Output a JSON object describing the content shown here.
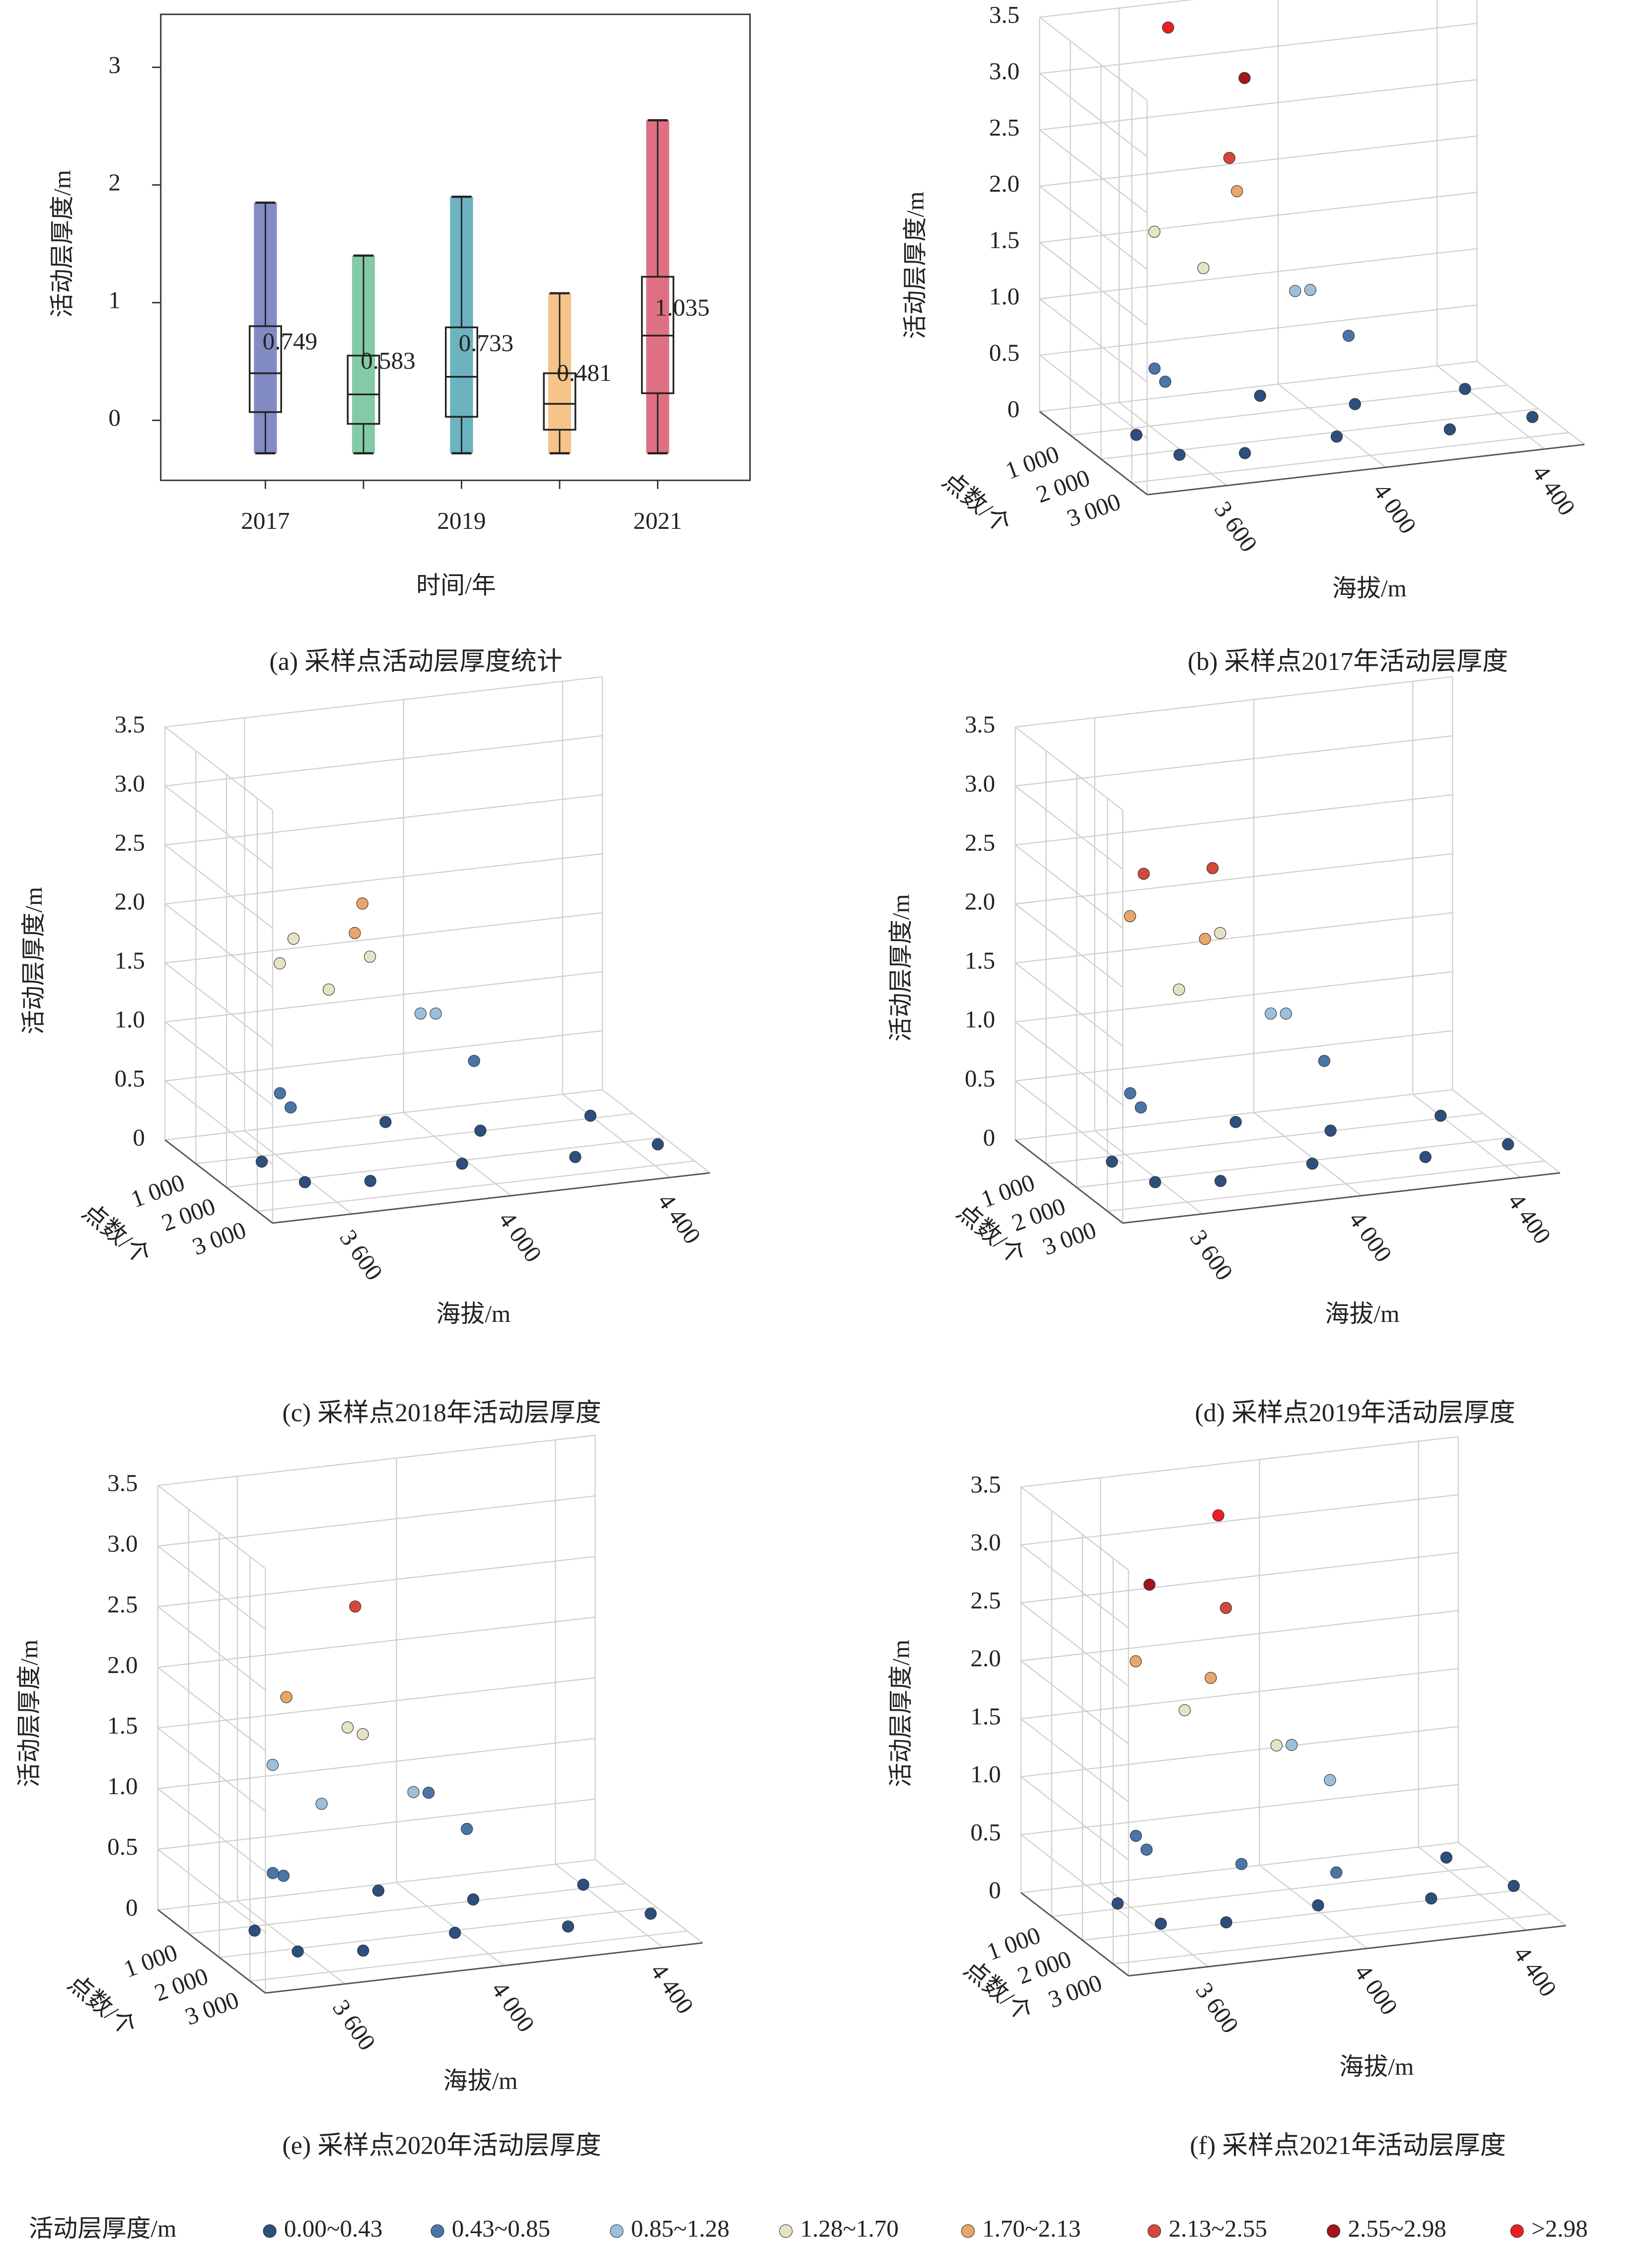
{
  "chart_data": [
    {
      "type": "box",
      "x_label": "时间/年",
      "y_label": "活动层厚度/m",
      "caption": "(a) 采样点活动层厚度统计",
      "categories": [
        "2017",
        null,
        "2019",
        null,
        "2021"
      ],
      "colors": [
        "#5a64b0",
        "#5cb88a",
        "#3a9aa8",
        "#f0b060",
        "#d4405a"
      ],
      "boxes": [
        {
          "low": -0.28,
          "q1": 0.07,
          "median": 0.4,
          "q3": 0.8,
          "high": 1.85
        },
        {
          "low": -0.28,
          "q1": -0.03,
          "median": 0.22,
          "q3": 0.55,
          "high": 1.4
        },
        {
          "low": -0.28,
          "q1": 0.03,
          "median": 0.37,
          "q3": 0.79,
          "high": 1.9
        },
        {
          "low": -0.28,
          "q1": -0.08,
          "median": 0.14,
          "q3": 0.4,
          "high": 1.08
        },
        {
          "low": -0.28,
          "q1": 0.23,
          "median": 0.72,
          "q3": 1.22,
          "high": 2.55
        }
      ],
      "means": [
        0.749,
        0.583,
        0.733,
        0.481,
        1.035
      ],
      "ylim": [
        -0.51,
        3.45
      ],
      "yticks": [
        0,
        1,
        2,
        3
      ]
    },
    {
      "type": "scatter3d",
      "caption": "(b) 采样点2017年活动层厚度",
      "x_label": "海拔/m",
      "y_label": "点数/个",
      "z_label": "活动层厚度/m",
      "xlim": [
        3400,
        4500
      ],
      "ylim": [
        0,
        3500
      ],
      "zlim": [
        0,
        3.5
      ],
      "xticks": [
        {
          "value": 3600,
          "label": "3 600"
        },
        {
          "value": 4000,
          "label": "4 000"
        },
        {
          "value": 4400,
          "label": "4 400"
        }
      ],
      "yticks": [
        {
          "value": 1000,
          "label": "1 000"
        },
        {
          "value": 2000,
          "label": "2 000"
        },
        {
          "value": 3000,
          "label": "3 000"
        }
      ],
      "zticks": [
        0,
        0.5,
        {
          "value": 1,
          "label": "1.0"
        },
        1.5,
        {
          "value": 2,
          "label": "2.0"
        },
        2.5,
        {
          "value": 3,
          "label": "3.0"
        },
        3.5
      ],
      "x": [
        3450,
        3520,
        3600,
        3700,
        3800,
        3900,
        4000,
        4100,
        4200,
        4300,
        3650,
        3750,
        3850,
        3950,
        4050,
        3550,
        3700,
        3900,
        4400,
        3800
      ],
      "y": [
        2500,
        3000,
        1500,
        2800,
        2000,
        3200,
        2500,
        1000,
        3000,
        2200,
        500,
        800,
        600,
        1200,
        400,
        1800,
        300,
        200,
        3100,
        1000
      ],
      "z": [
        0.3,
        0.2,
        0.5,
        0.1,
        0.4,
        0.25,
        0.35,
        0.6,
        0.15,
        0.3,
        1.6,
        1.3,
        1.9,
        1.1,
        0.9,
        0.7,
        3.35,
        2.8,
        0.2,
        2.3
      ]
    },
    {
      "type": "scatter3d",
      "caption": "(c) 采样点2018年活动层厚度",
      "x_label": "海拔/m",
      "y_label": "点数/个",
      "z_label": "活动层厚度/m",
      "xlim": [
        3400,
        4500
      ],
      "ylim": [
        0,
        3500
      ],
      "zlim": [
        0,
        3.5
      ],
      "xticks": [
        {
          "value": 3600,
          "label": "3 600"
        },
        {
          "value": 4000,
          "label": "4 000"
        },
        {
          "value": 4400,
          "label": "4 400"
        }
      ],
      "yticks": [
        {
          "value": 1000,
          "label": "1 000"
        },
        {
          "value": 2000,
          "label": "2 000"
        },
        {
          "value": 3000,
          "label": "3 000"
        }
      ],
      "zticks": [
        0,
        0.5,
        {
          "value": 1,
          "label": "1.0"
        },
        1.5,
        {
          "value": 2,
          "label": "2.0"
        },
        2.5,
        {
          "value": 3,
          "label": "3.0"
        },
        3.5
      ],
      "x": [
        3450,
        3520,
        3600,
        3700,
        3800,
        3900,
        4000,
        4100,
        4200,
        4300,
        3650,
        3750,
        3850,
        3950,
        4050,
        3550,
        3700,
        3900,
        4400,
        3800
      ],
      "y": [
        2500,
        3000,
        1500,
        2800,
        2000,
        3200,
        2500,
        1000,
        3000,
        2200,
        500,
        800,
        600,
        1200,
        400,
        1800,
        300,
        200,
        3100,
        1000
      ],
      "z": [
        0.3,
        0.2,
        0.5,
        0.1,
        0.4,
        0.25,
        0.35,
        0.6,
        0.15,
        0.3,
        1.5,
        1.3,
        1.95,
        1.1,
        0.9,
        0.7,
        1.65,
        1.4,
        0.2,
        1.8
      ]
    },
    {
      "type": "scatter3d",
      "caption": "(d) 采样点2019年活动层厚度",
      "x_label": "海拔/m",
      "y_label": "点数/个",
      "z_label": "活动层厚度/m",
      "xlim": [
        3400,
        4500
      ],
      "ylim": [
        0,
        3500
      ],
      "zlim": [
        0,
        3.5
      ],
      "xticks": [
        {
          "value": 3600,
          "label": "3 600"
        },
        {
          "value": 4000,
          "label": "4 000"
        },
        {
          "value": 4400,
          "label": "4 400"
        }
      ],
      "yticks": [
        {
          "value": 1000,
          "label": "1 000"
        },
        {
          "value": 2000,
          "label": "2 000"
        },
        {
          "value": 3000,
          "label": "3 000"
        }
      ],
      "zticks": [
        0,
        0.5,
        {
          "value": 1,
          "label": "1.0"
        },
        1.5,
        {
          "value": 2,
          "label": "2.0"
        },
        2.5,
        {
          "value": 3,
          "label": "3.0"
        },
        3.5
      ],
      "x": [
        3450,
        3520,
        3600,
        3700,
        3800,
        3900,
        4000,
        4100,
        4200,
        4300,
        3650,
        3750,
        3850,
        3950,
        4050,
        3550,
        3700,
        3900,
        4400,
        3800
      ],
      "y": [
        2500,
        3000,
        1500,
        2800,
        2000,
        3200,
        2500,
        1000,
        3000,
        2200,
        500,
        800,
        600,
        1200,
        400,
        1800,
        300,
        200,
        3100,
        1000
      ],
      "z": [
        0.3,
        0.2,
        0.5,
        0.1,
        0.4,
        0.25,
        0.35,
        0.6,
        0.15,
        0.3,
        1.9,
        1.3,
        2.25,
        1.1,
        0.9,
        0.7,
        2.2,
        1.6,
        0.2,
        1.75
      ]
    },
    {
      "type": "scatter3d",
      "caption": "(e) 采样点2020年活动层厚度",
      "x_label": "海拔/m",
      "y_label": "点数/个",
      "z_label": "活动层厚度/m",
      "xlim": [
        3400,
        4500
      ],
      "ylim": [
        0,
        3500
      ],
      "zlim": [
        0,
        3.5
      ],
      "xticks": [
        {
          "value": 3600,
          "label": "3 600"
        },
        {
          "value": 4000,
          "label": "4 000"
        },
        {
          "value": 4400,
          "label": "4 400"
        }
      ],
      "yticks": [
        {
          "value": 1000,
          "label": "1 000"
        },
        {
          "value": 2000,
          "label": "2 000"
        },
        {
          "value": 3000,
          "label": "3 000"
        }
      ],
      "zticks": [
        0,
        0.5,
        {
          "value": 1,
          "label": "1.0"
        },
        1.5,
        {
          "value": 2,
          "label": "2.0"
        },
        2.5,
        {
          "value": 3,
          "label": "3.0"
        },
        3.5
      ],
      "x": [
        3450,
        3520,
        3600,
        3700,
        3800,
        3900,
        4000,
        4100,
        4200,
        4300,
        3650,
        3750,
        3850,
        3950,
        4050,
        3550,
        3700,
        3900,
        4400,
        3800
      ],
      "y": [
        2500,
        3000,
        1500,
        2800,
        2000,
        3200,
        2500,
        1000,
        3000,
        2200,
        500,
        800,
        600,
        1200,
        400,
        1800,
        300,
        200,
        3100,
        1000
      ],
      "z": [
        0.3,
        0.2,
        0.5,
        0.1,
        0.4,
        0.25,
        0.35,
        0.6,
        0.15,
        0.3,
        1.2,
        0.9,
        2.45,
        1.0,
        0.8,
        0.6,
        1.7,
        1.3,
        0.2,
        1.55
      ]
    },
    {
      "type": "scatter3d",
      "caption": "(f) 采样点2021年活动层厚度",
      "x_label": "海拔/m",
      "y_label": "点数/个",
      "z_label": "活动层厚度/m",
      "xlim": [
        3400,
        4500
      ],
      "ylim": [
        0,
        3500
      ],
      "zlim": [
        0,
        3.5
      ],
      "xticks": [
        {
          "value": 3600,
          "label": "3 600"
        },
        {
          "value": 4000,
          "label": "4 000"
        },
        {
          "value": 4400,
          "label": "4 400"
        }
      ],
      "yticks": [
        {
          "value": 1000,
          "label": "1 000"
        },
        {
          "value": 2000,
          "label": "2 000"
        },
        {
          "value": 3000,
          "label": "3 000"
        }
      ],
      "zticks": [
        0,
        0.5,
        {
          "value": 1,
          "label": "1.0"
        },
        1.5,
        {
          "value": 2,
          "label": "2.0"
        },
        2.5,
        {
          "value": 3,
          "label": "3.0"
        },
        3.5
      ],
      "x": [
        3450,
        3520,
        3600,
        3700,
        3800,
        3900,
        4000,
        4100,
        4200,
        4300,
        3650,
        3750,
        3850,
        3950,
        4050,
        3550,
        3700,
        3900,
        4400,
        3800
      ],
      "y": [
        2500,
        3000,
        1500,
        2800,
        2000,
        3200,
        2500,
        1000,
        3000,
        2200,
        500,
        800,
        600,
        1200,
        400,
        1800,
        300,
        200,
        3100,
        1000
      ],
      "z": [
        0.4,
        0.3,
        0.6,
        0.2,
        0.5,
        0.35,
        0.45,
        0.9,
        0.25,
        0.4,
        2.0,
        1.6,
        3.2,
        1.3,
        1.1,
        0.8,
        2.6,
        2.3,
        0.3,
        1.9
      ]
    }
  ],
  "legend": {
    "title": "活动层厚度/m",
    "bins": [
      0,
      0.43,
      0.85,
      1.28,
      1.7,
      2.13,
      2.55,
      2.98
    ],
    "items": [
      {
        "label": "0.00~0.43",
        "color": "#2c4f7c"
      },
      {
        "label": "0.43~0.85",
        "color": "#4a75a8"
      },
      {
        "label": "0.85~1.28",
        "color": "#9cc0dc"
      },
      {
        "label": "1.28~1.70",
        "color": "#e6e3c4"
      },
      {
        "label": "1.70~2.13",
        "color": "#e9a56a"
      },
      {
        "label": "2.13~2.55",
        "color": "#d4473a"
      },
      {
        "label": "2.55~2.98",
        "color": "#a3141b"
      },
      {
        "label": ">2.98",
        "color": "#ee1c24"
      }
    ]
  }
}
